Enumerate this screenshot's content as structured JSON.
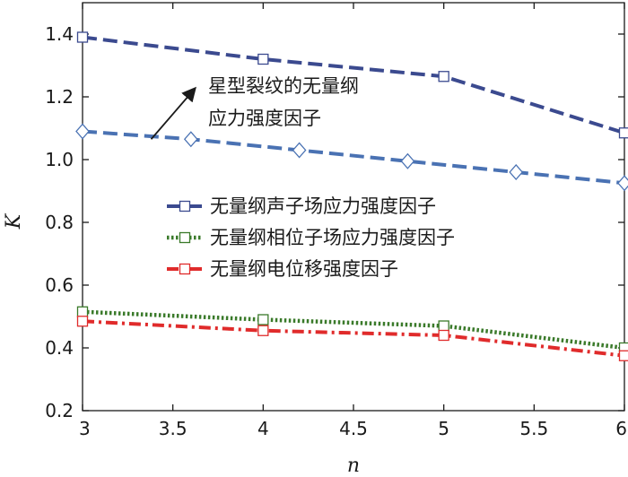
{
  "chart_data": {
    "type": "line",
    "title": "",
    "xlabel": "n",
    "ylabel": "K",
    "xlim": [
      3,
      6
    ],
    "ylim": [
      0.2,
      1.5
    ],
    "xticks": [
      "3",
      "3.5",
      "4",
      "4.5",
      "5",
      "5.5",
      "6"
    ],
    "yticks": [
      "0.2",
      "0.4",
      "0.6",
      "0.8",
      "1.0",
      "1.2",
      "1.4"
    ],
    "grid": false,
    "legend_position": "center-left",
    "series": [
      {
        "name": "",
        "color": "#3b4a8f",
        "line_style": "dashed",
        "marker": "square",
        "x": [
          3,
          4,
          5,
          6
        ],
        "y": [
          1.39,
          1.32,
          1.265,
          1.085
        ]
      },
      {
        "name": "",
        "color": "#4a72b3",
        "line_style": "dashed",
        "marker": "diamond",
        "x": [
          3,
          3.6,
          4.2,
          4.8,
          5.4,
          6
        ],
        "y": [
          1.09,
          1.065,
          1.03,
          0.995,
          0.96,
          0.925
        ]
      },
      {
        "name": "",
        "color": "#3a7a2a",
        "line_style": "dotted",
        "marker": "square",
        "x": [
          3,
          4,
          5,
          6
        ],
        "y": [
          0.515,
          0.49,
          0.47,
          0.4
        ]
      },
      {
        "name": "",
        "color": "#e02b2b",
        "line_style": "dashdot",
        "marker": "square",
        "x": [
          3,
          4,
          5,
          6
        ],
        "y": [
          0.485,
          0.455,
          0.44,
          0.375
        ]
      }
    ],
    "legend": [
      {
        "label": "无量纲声子场应力强度因子",
        "color": "#3b4a8f",
        "line_style": "dashed"
      },
      {
        "label": "无量纲相位子场应力强度因子",
        "color": "#3a7a2a",
        "line_style": "dotted"
      },
      {
        "label": "无量纲电位移强度因子",
        "color": "#e02b2b",
        "line_style": "dashdot"
      }
    ],
    "annotation": {
      "line1": "星型裂纹的无量纲",
      "line2": "应力强度因子",
      "arrow_from": [
        3.38,
        1.065
      ],
      "arrow_to": [
        3.62,
        1.225
      ]
    }
  }
}
